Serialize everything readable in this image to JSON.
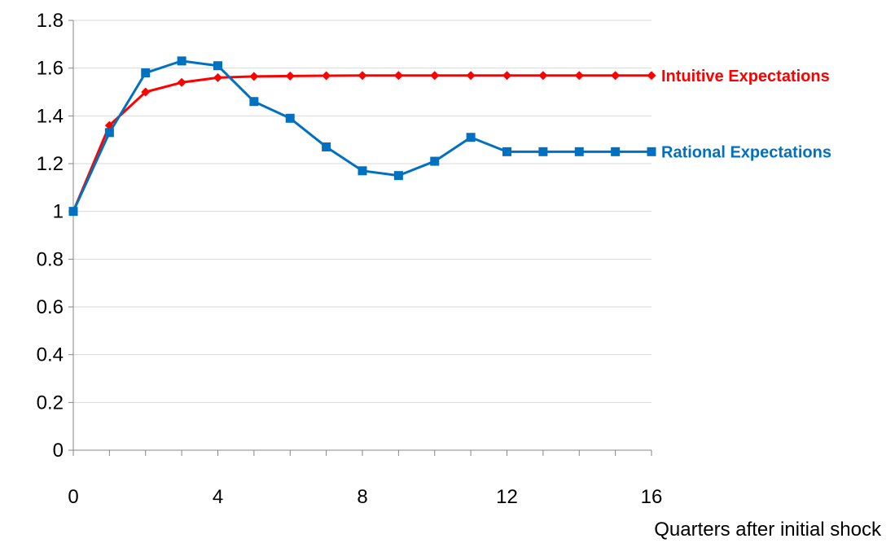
{
  "chart_data": {
    "type": "line",
    "xlabel": "Quarters after initial shock",
    "ylabel": "",
    "xlim": [
      0,
      16
    ],
    "ylim": [
      0,
      1.8
    ],
    "x_ticks": [
      0,
      4,
      8,
      12,
      16
    ],
    "y_ticks": [
      0,
      0.2,
      0.4,
      0.6,
      0.8,
      1,
      1.2,
      1.4,
      1.6,
      1.8
    ],
    "x_minor_ticks": [
      0,
      1,
      2,
      3,
      4,
      5,
      6,
      7,
      8,
      9,
      10,
      11,
      12,
      13,
      14,
      15,
      16
    ],
    "grid": "horizontal",
    "legend": "inline labels at right end of each series",
    "x": [
      0,
      1,
      2,
      3,
      4,
      5,
      6,
      7,
      8,
      9,
      10,
      11,
      12,
      13,
      14,
      15,
      16
    ],
    "series": [
      {
        "name": "Intuitive Expectations",
        "color": "#ff0000",
        "marker": "diamond",
        "values": [
          1.0,
          1.36,
          1.5,
          1.54,
          1.56,
          1.565,
          1.567,
          1.568,
          1.569,
          1.569,
          1.569,
          1.569,
          1.569,
          1.569,
          1.569,
          1.569,
          1.569
        ]
      },
      {
        "name": "Rational Expectations",
        "color": "#0070c0",
        "marker": "square",
        "values": [
          1.0,
          1.33,
          1.58,
          1.63,
          1.61,
          1.46,
          1.39,
          1.27,
          1.17,
          1.15,
          1.21,
          1.31,
          1.25,
          1.25,
          1.25,
          1.25,
          1.25
        ]
      }
    ]
  },
  "colors": {
    "grid": "#d9d9d9",
    "axis": "#868686"
  }
}
